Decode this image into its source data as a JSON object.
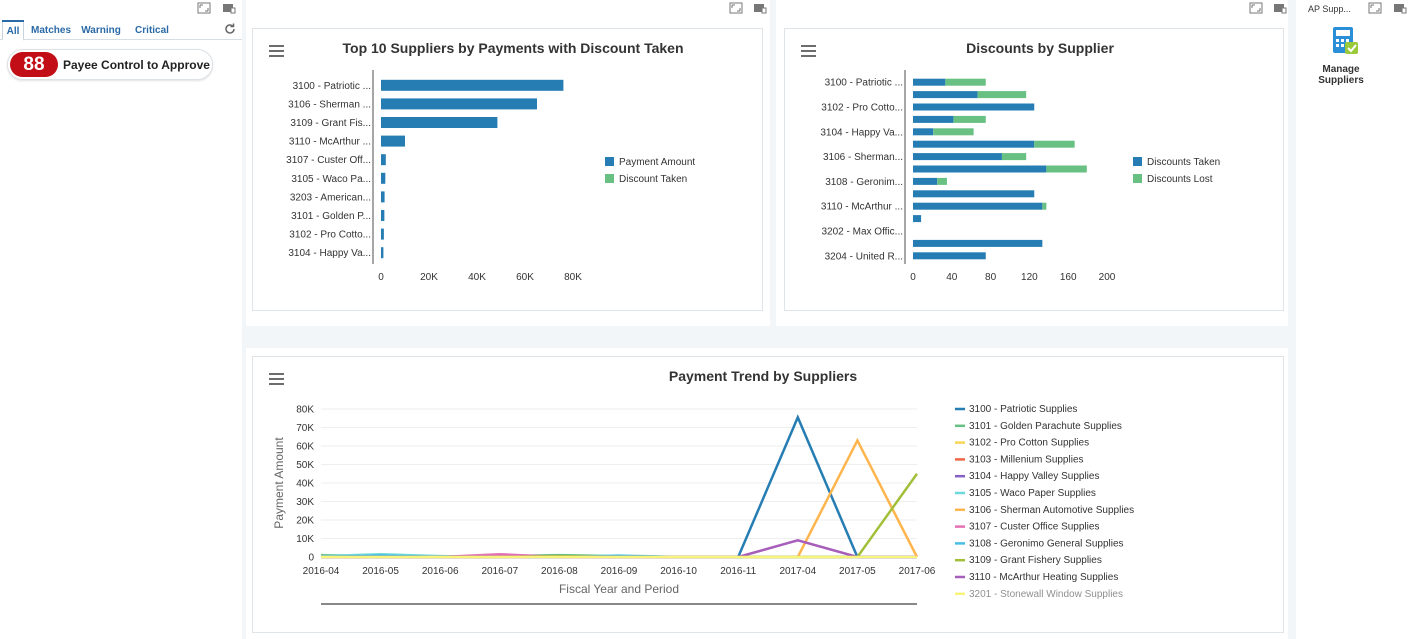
{
  "left_panel": {
    "tabs": [
      "All",
      "Matches",
      "Warning",
      "Critical"
    ],
    "active_tab": "All",
    "kpi": {
      "value": "88",
      "label": "Payee Control to Approve",
      "badge_color": "#c20e16"
    },
    "refresh_icon": "refresh-icon"
  },
  "top_suppliers": {
    "title": "Top 10 Suppliers by Payments with Discount Taken",
    "menu_icon": "hamburger-menu-icon",
    "chart_data": {
      "type": "bar",
      "orientation": "horizontal",
      "stacked": true,
      "categories": [
        "3100 - Patriotic ...",
        "3106 - Sherman ...",
        "3109 - Grant Fis...",
        "3110 - McArthur ...",
        "3107 - Custer Off...",
        "3105 - Waco Pa...",
        "3203 - American...",
        "3101 - Golden P...",
        "3102 - Pro Cotto...",
        "3104 - Happy Va..."
      ],
      "series": [
        {
          "name": "Payment Amount",
          "color": "#267db3",
          "values": [
            76000,
            65000,
            48500,
            10000,
            2000,
            1800,
            1500,
            1400,
            1200,
            1000
          ]
        },
        {
          "name": "Discount Taken",
          "color": "#68c182",
          "values": [
            0,
            0,
            0,
            0,
            0,
            0,
            0,
            0,
            0,
            0
          ]
        }
      ],
      "xlim": [
        0,
        80000
      ],
      "xticks": [
        "0",
        "20K",
        "40K",
        "60K",
        "80K"
      ],
      "legend": "right"
    }
  },
  "discounts": {
    "title": "Discounts by Supplier",
    "menu_icon": "hamburger-menu-icon",
    "chart_data": {
      "type": "bar",
      "orientation": "horizontal",
      "stacked": true,
      "categories": [
        "3100 - Patriotic ...",
        "",
        "3102 - Pro Cotto...",
        "",
        "3104 - Happy Va...",
        "",
        "3106 - Sherman...",
        "",
        "3108 - Geronim...",
        "",
        "3110 - McArthur ...",
        "",
        "3202 - Max Offic...",
        "",
        "3204 - United R..."
      ],
      "series": [
        {
          "name": "Discounts Taken",
          "color": "#267db3",
          "values": [
            40,
            80,
            150,
            50,
            25,
            150,
            110,
            165,
            30,
            150,
            160,
            10,
            0,
            160,
            90
          ]
        },
        {
          "name": "Discounts Lost",
          "color": "#68c182",
          "values": [
            50,
            60,
            0,
            40,
            50,
            50,
            30,
            50,
            12,
            0,
            5,
            0,
            0,
            0,
            0
          ]
        }
      ],
      "xlim": [
        0,
        240
      ],
      "xticks": [
        "0",
        "40",
        "80",
        "120",
        "160",
        "200"
      ],
      "legend": "right"
    }
  },
  "payment_trend": {
    "title": "Payment Trend by Suppliers",
    "menu_icon": "hamburger-menu-icon",
    "chart_data": {
      "type": "line",
      "x": [
        "2016-04",
        "2016-05",
        "2016-06",
        "2016-07",
        "2016-08",
        "2016-09",
        "2016-10",
        "2016-11",
        "2017-04",
        "2017-05",
        "2017-06"
      ],
      "xlabel": "Fiscal Year and Period",
      "ylabel": "Payment Amount",
      "ylim": [
        0,
        80000
      ],
      "yticks": [
        "0",
        "10K",
        "20K",
        "30K",
        "40K",
        "50K",
        "60K",
        "70K",
        "80K"
      ],
      "series": [
        {
          "name": "3100 - Patriotic Supplies",
          "color": "#267db3",
          "values": [
            0,
            0,
            0,
            0,
            0,
            0,
            0,
            0,
            75500,
            0,
            0
          ]
        },
        {
          "name": "3101 - Golden Parachute Supplies",
          "color": "#68c182",
          "values": [
            1000,
            500,
            0,
            500,
            1000,
            500,
            0,
            0,
            0,
            0,
            0
          ]
        },
        {
          "name": "3102 - Pro Cotton Supplies",
          "color": "#fad55c",
          "values": [
            0,
            0,
            500,
            0,
            0,
            0,
            0,
            0,
            0,
            0,
            0
          ]
        },
        {
          "name": "3103 - Millenium Supplies",
          "color": "#ed6647",
          "values": [
            0,
            0,
            0,
            0,
            0,
            0,
            0,
            0,
            0,
            0,
            0
          ]
        },
        {
          "name": "3104 - Happy Valley Supplies",
          "color": "#8561c8",
          "values": [
            0,
            0,
            0,
            0,
            0,
            0,
            0,
            0,
            0,
            0,
            0
          ]
        },
        {
          "name": "3105 - Waco Paper Supplies",
          "color": "#6ddbdb",
          "values": [
            500,
            1500,
            500,
            0,
            0,
            800,
            0,
            0,
            0,
            0,
            0
          ]
        },
        {
          "name": "3106 - Sherman Automotive Supplies",
          "color": "#ffb54d",
          "values": [
            0,
            0,
            0,
            0,
            0,
            0,
            0,
            0,
            0,
            63000,
            0
          ]
        },
        {
          "name": "3107 - Custer Office Supplies",
          "color": "#e371b2",
          "values": [
            0,
            0,
            0,
            1500,
            0,
            0,
            0,
            0,
            0,
            0,
            0
          ]
        },
        {
          "name": "3108 - Geronimo General Supplies",
          "color": "#47bde7",
          "values": [
            0,
            800,
            0,
            0,
            0,
            600,
            0,
            0,
            0,
            0,
            0
          ]
        },
        {
          "name": "3109 - Grant Fishery Supplies",
          "color": "#a2bf39",
          "values": [
            0,
            0,
            0,
            0,
            500,
            0,
            0,
            0,
            0,
            0,
            45000
          ]
        },
        {
          "name": "3110 - McArthur Heating Supplies",
          "color": "#a75dba",
          "values": [
            0,
            0,
            0,
            0,
            0,
            0,
            0,
            0,
            9000,
            0,
            0
          ]
        },
        {
          "name": "3201 - Stonewall Window Supplies",
          "color": "#f7f37b",
          "values": [
            0,
            0,
            0,
            0,
            0,
            0,
            0,
            0,
            0,
            0,
            0
          ]
        }
      ],
      "legend": "right"
    }
  },
  "launcher": {
    "header": "AP Supp...",
    "app_label": "Manage Suppliers",
    "app_icon": "calculator-icon"
  }
}
